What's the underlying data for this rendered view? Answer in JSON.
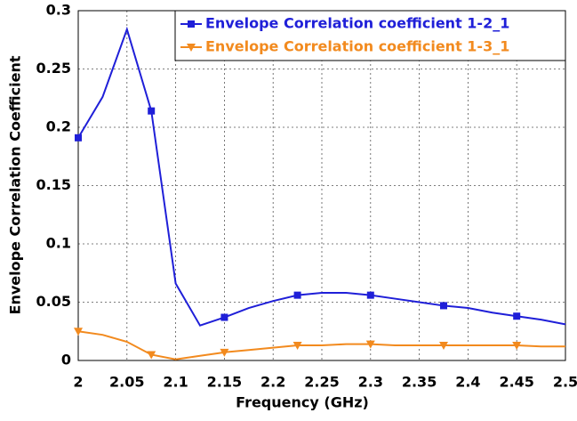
{
  "chart_data": {
    "type": "line",
    "xlabel": "Frequency (GHz)",
    "ylabel": "Envelope Correlation Coefficient",
    "x": [
      2.0,
      2.025,
      2.05,
      2.075,
      2.1,
      2.125,
      2.15,
      2.175,
      2.2,
      2.225,
      2.25,
      2.275,
      2.3,
      2.325,
      2.35,
      2.375,
      2.4,
      2.425,
      2.45,
      2.475,
      2.5
    ],
    "series": [
      {
        "name": "Envelope Correlation coefficient 1-2_1",
        "color": "#1f1fd8",
        "marker": "square",
        "values": [
          0.191,
          0.226,
          0.284,
          0.214,
          0.066,
          0.03,
          0.037,
          0.045,
          0.051,
          0.056,
          0.058,
          0.058,
          0.056,
          0.053,
          0.05,
          0.047,
          0.045,
          0.041,
          0.038,
          0.035,
          0.031
        ]
      },
      {
        "name": "Envelope Correlation coefficient 1-3_1",
        "color": "#f28a1e",
        "marker": "triangle-down",
        "values": [
          0.025,
          0.022,
          0.016,
          0.005,
          0.001,
          0.004,
          0.007,
          0.009,
          0.011,
          0.013,
          0.013,
          0.014,
          0.014,
          0.013,
          0.013,
          0.013,
          0.013,
          0.013,
          0.013,
          0.012,
          0.012
        ]
      }
    ],
    "marker_every": 3,
    "xlim": [
      2,
      2.5
    ],
    "xticks": [
      2,
      2.05,
      2.1,
      2.15,
      2.2,
      2.25,
      2.3,
      2.35,
      2.4,
      2.45,
      2.5
    ],
    "ylim": [
      0,
      0.3
    ],
    "yticks": [
      0,
      0.05,
      0.1,
      0.15,
      0.2,
      0.25,
      0.3
    ],
    "grid": true,
    "legend": "upper right"
  }
}
